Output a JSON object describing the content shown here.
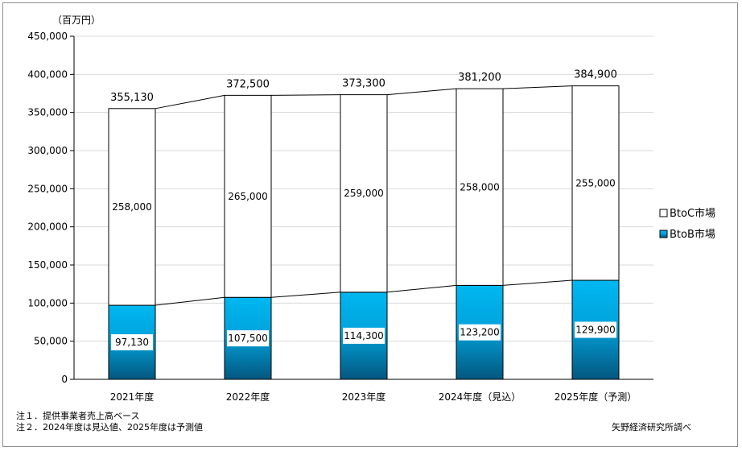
{
  "chart_data": {
    "type": "bar",
    "stacked": true,
    "unit_label": "（百万円）",
    "categories": [
      "2021年度",
      "2022年度",
      "2023年度",
      "2024年度（見込）",
      "2025年度（予測）"
    ],
    "series": [
      {
        "name": "BtoB市場",
        "values": [
          97130,
          107500,
          114300,
          123200,
          129900
        ],
        "value_labels": [
          "97,130",
          "107,500",
          "114,300",
          "123,200",
          "129,900"
        ]
      },
      {
        "name": "BtoC市場",
        "values": [
          258000,
          265000,
          259000,
          258000,
          255000
        ],
        "value_labels": [
          "258,000",
          "265,000",
          "259,000",
          "258,000",
          "255,000"
        ]
      }
    ],
    "totals": [
      355130,
      372500,
      373300,
      381200,
      384900
    ],
    "total_labels": [
      "355,130",
      "372,500",
      "373,300",
      "381,200",
      "384,900"
    ],
    "ylim": [
      0,
      450000
    ],
    "yticks": [
      0,
      50000,
      100000,
      150000,
      200000,
      250000,
      300000,
      350000,
      400000,
      450000
    ],
    "ytick_labels": [
      "0",
      "50,000",
      "100,000",
      "150,000",
      "200,000",
      "250,000",
      "300,000",
      "350,000",
      "400,000",
      "450,000"
    ],
    "legend": [
      "BtoC市場",
      "BtoB市場"
    ],
    "legend_position": "right",
    "grid": true,
    "colors": {
      "btob_top": "#00b7f0",
      "btob_bottom": "#04577f",
      "btoc": "#ffffff",
      "grid": "#d9d9d9",
      "bar_edge": "#000000"
    }
  },
  "notes": [
    "注１．提供事業者売上高ベース",
    "注２．2024年度は見込値、2025年度は予測値"
  ],
  "source": "矢野経済研究所調べ"
}
